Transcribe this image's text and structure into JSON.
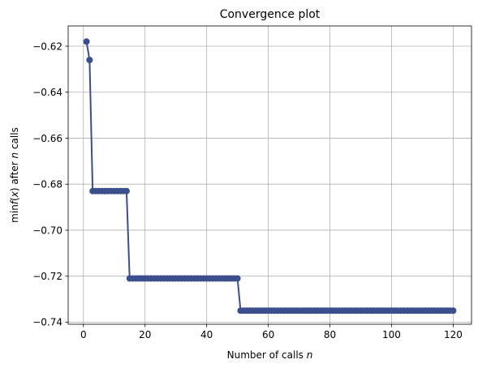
{
  "chart_data": {
    "type": "line",
    "title": "Convergence plot",
    "xlabel": "Number of calls",
    "xlabel_var": "n",
    "ylabel_parts": [
      "min",
      "f",
      "(",
      "x",
      ") after ",
      "n",
      " calls"
    ],
    "xlim": [
      -4.95,
      125.95
    ],
    "ylim": [
      -0.7409,
      -0.6112
    ],
    "xticks": [
      0,
      20,
      40,
      60,
      80,
      100,
      120
    ],
    "xtick_labels": [
      "0",
      "20",
      "40",
      "60",
      "80",
      "100",
      "120"
    ],
    "yticks": [
      -0.62,
      -0.64,
      -0.66,
      -0.68,
      -0.7,
      -0.72,
      -0.74
    ],
    "ytick_labels": [
      "−0.62",
      "−0.64",
      "−0.66",
      "−0.68",
      "−0.70",
      "−0.72",
      "−0.74"
    ],
    "grid": true,
    "color": "#3b4f8c",
    "series": [
      {
        "segments": [
          {
            "from": 1,
            "to": 1,
            "value": -0.618
          },
          {
            "from": 2,
            "to": 2,
            "value": -0.626
          },
          {
            "from": 3,
            "to": 14,
            "value": -0.683
          },
          {
            "from": 15,
            "to": 50,
            "value": -0.721
          },
          {
            "from": 51,
            "to": 120,
            "value": -0.735
          }
        ]
      }
    ]
  }
}
